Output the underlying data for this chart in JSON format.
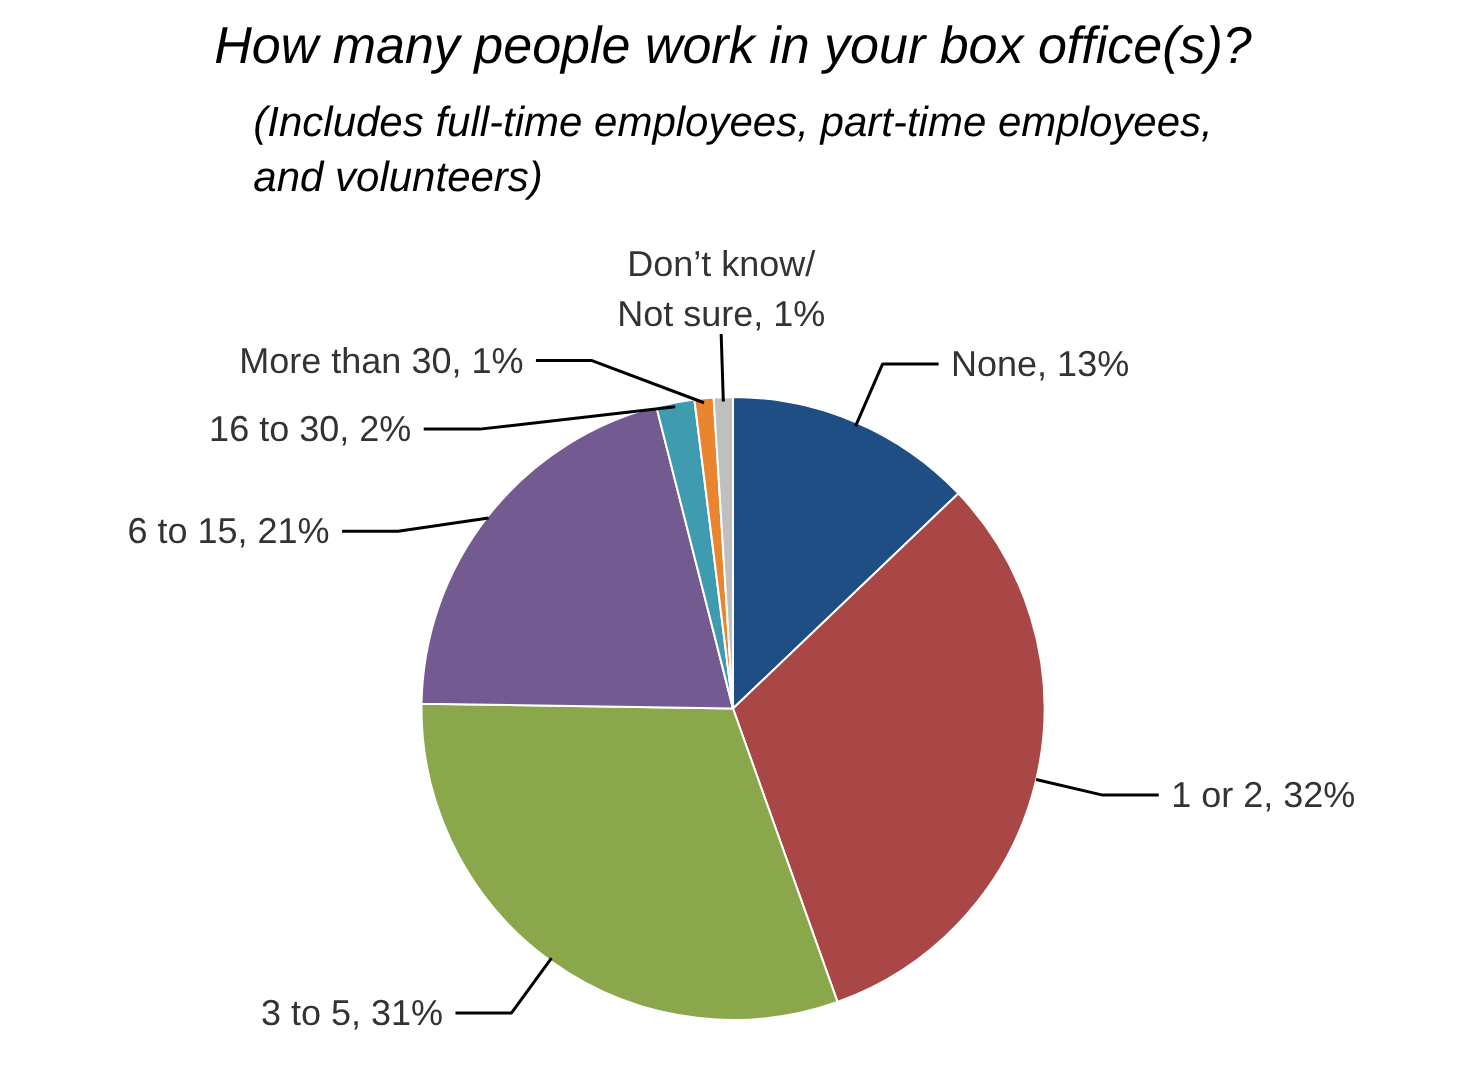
{
  "chart_data": {
    "type": "pie",
    "title": "How many people work in your box office(s)?",
    "subtitle": "(Includes full-time employees, part-time employees, and volunteers)",
    "categories": [
      "None",
      "1 or 2",
      "3 to 5",
      "6 to 15",
      "16 to 30",
      "More than 30",
      "Don’t know/ Not sure"
    ],
    "values": [
      13,
      32,
      31,
      21,
      2,
      1,
      1
    ],
    "value_labels": [
      "13%",
      "32%",
      "31%",
      "21%",
      "2%",
      "1%",
      "1%"
    ],
    "colors": [
      "#1f4e85",
      "#a84746",
      "#8aa84b",
      "#735a91",
      "#3e9bb0",
      "#e8852e",
      "#bfbfbf"
    ]
  }
}
